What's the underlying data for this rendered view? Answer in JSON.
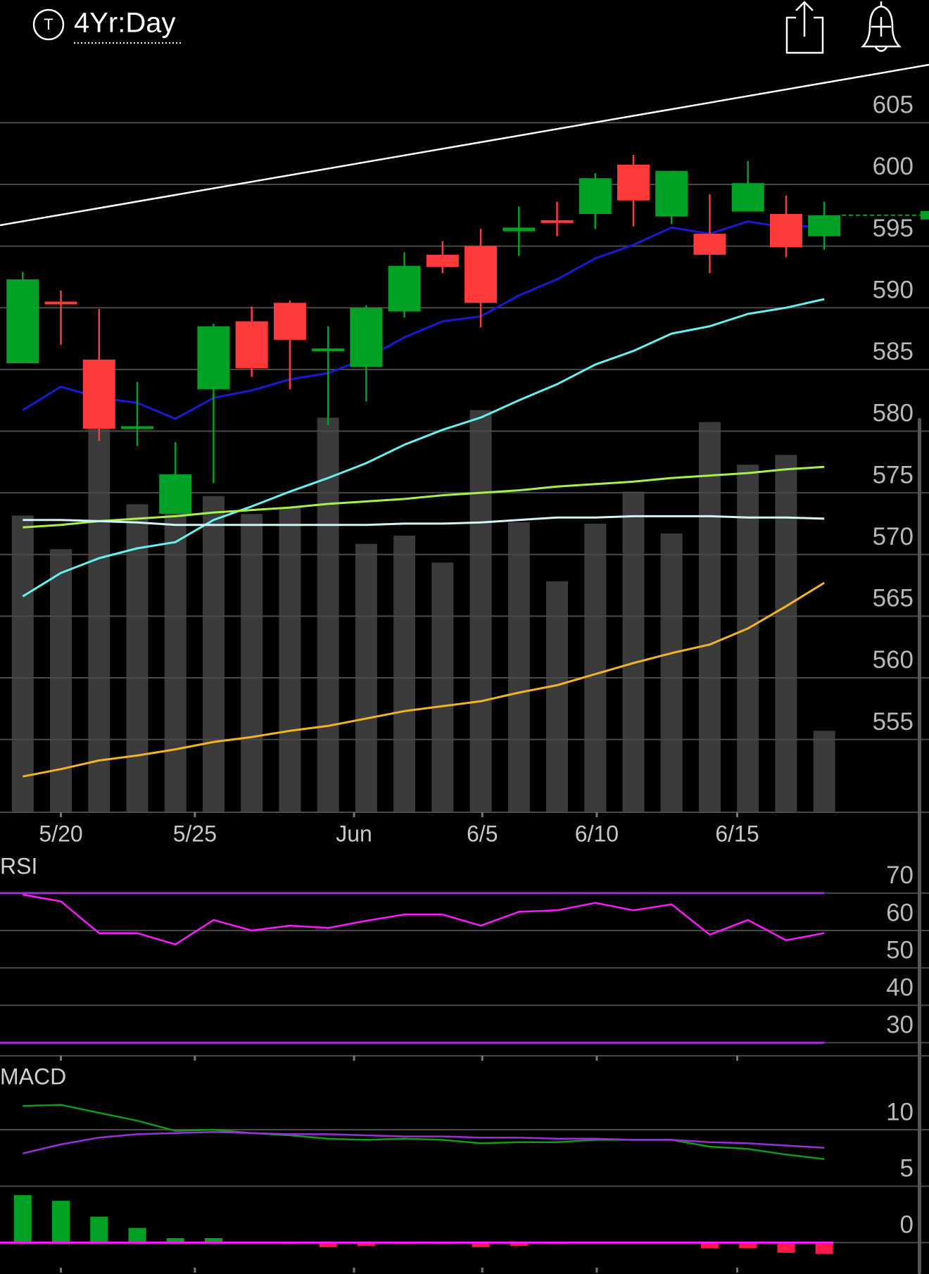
{
  "header": {
    "badge": "T",
    "title": "4Yr:Day"
  },
  "chart_data": [
    {
      "type": "candlestick",
      "categories": [
        null,
        null,
        null,
        null,
        null,
        null,
        null,
        null,
        null,
        null,
        null,
        null,
        null,
        null,
        null,
        null,
        null,
        null,
        null,
        null,
        null,
        null
      ],
      "open": [
        585.5,
        590.5,
        585.8,
        580.2,
        573.3,
        583.4,
        588.9,
        590.4,
        586.5,
        585.2,
        589.7,
        594.3,
        595.0,
        596.2,
        597.1,
        597.6,
        601.6,
        597.4,
        596.0,
        597.8,
        597.6,
        595.8
      ],
      "high": [
        592.9,
        591.4,
        589.9,
        584.0,
        579.1,
        588.7,
        590.1,
        590.6,
        588.5,
        590.2,
        594.5,
        595.4,
        596.4,
        598.2,
        598.6,
        600.9,
        602.4,
        601.1,
        599.2,
        601.9,
        599.1,
        598.6
      ],
      "low": [
        585.5,
        587.0,
        579.2,
        578.8,
        573.3,
        575.8,
        584.4,
        583.4,
        580.5,
        582.4,
        589.2,
        592.8,
        588.4,
        594.2,
        595.8,
        596.4,
        596.6,
        596.8,
        592.8,
        597.8,
        594.1,
        594.7
      ],
      "close": [
        592.3,
        590.3,
        580.2,
        580.4,
        576.5,
        588.5,
        585.1,
        587.4,
        586.7,
        590.0,
        593.4,
        593.3,
        590.4,
        596.5,
        596.9,
        600.5,
        598.7,
        601.1,
        594.3,
        600.1,
        594.9,
        597.5
      ],
      "up_color": "#00a124",
      "down_color": "#ff3a3a",
      "volume": {
        "values": [
          39.7,
          35.2,
          55.7,
          41.2,
          43.7,
          42.3,
          39.9,
          40.8,
          52.8,
          35.9,
          37.0,
          33.4,
          53.8,
          38.8,
          30.9,
          38.6,
          42.9,
          37.3,
          52.2,
          46.5,
          47.8,
          10.9
        ],
        "ylim": [
          0,
          100
        ],
        "color": "#3b3b3b"
      },
      "series": [
        {
          "color": "#1a1ad0",
          "values": [
            581.7,
            583.6,
            582.7,
            582.3,
            581.0,
            582.7,
            583.3,
            584.2,
            584.7,
            585.9,
            587.6,
            588.9,
            589.3,
            591.0,
            592.3,
            594.0,
            595.1,
            596.5,
            596.0,
            597.0,
            596.5,
            596.7
          ]
        },
        {
          "color": "#66f0f0",
          "values": [
            566.6,
            568.5,
            569.7,
            570.5,
            571.0,
            572.8,
            573.9,
            575.1,
            576.2,
            577.4,
            578.9,
            580.1,
            581.1,
            582.5,
            583.8,
            585.4,
            586.5,
            587.9,
            588.5,
            589.5,
            590.0,
            590.7
          ]
        },
        {
          "color": "#a8f04c",
          "values": [
            572.2,
            572.4,
            572.7,
            572.9,
            573.1,
            573.4,
            573.6,
            573.8,
            574.1,
            574.3,
            574.5,
            574.8,
            575.0,
            575.2,
            575.5,
            575.7,
            575.9,
            576.2,
            576.4,
            576.6,
            576.9,
            577.1
          ]
        },
        {
          "color": "#d2f4f4",
          "values": [
            572.8,
            572.8,
            572.7,
            572.6,
            572.4,
            572.4,
            572.4,
            572.4,
            572.4,
            572.4,
            572.5,
            572.5,
            572.6,
            572.8,
            573.0,
            573.0,
            573.1,
            573.1,
            573.1,
            573.0,
            573.0,
            572.9
          ]
        },
        {
          "color": "#f2b324",
          "values": [
            552.0,
            552.6,
            553.3,
            553.7,
            554.2,
            554.8,
            555.2,
            555.7,
            556.1,
            556.7,
            557.3,
            557.7,
            558.1,
            558.8,
            559.4,
            560.3,
            561.2,
            562.0,
            562.7,
            564.0,
            565.8,
            567.7
          ]
        }
      ],
      "ylim": [
        549.1,
        609.7
      ],
      "yticks": [
        555,
        560,
        565,
        570,
        575,
        580,
        585,
        590,
        595,
        600,
        605
      ],
      "grid": true,
      "xticks": [
        {
          "value": 1,
          "label": "5/20"
        },
        {
          "value": 4.51,
          "label": "5/25"
        },
        {
          "value": 8.68,
          "label": "Jun"
        },
        {
          "value": 12.04,
          "label": "6/5"
        },
        {
          "value": 15.04,
          "label": "6/10"
        },
        {
          "value": 18.72,
          "label": "6/15"
        }
      ]
    },
    {
      "type": "line",
      "title": "RSI",
      "categories": [
        null,
        null,
        null,
        null,
        null,
        null,
        null,
        null,
        null,
        null,
        null,
        null,
        null,
        null,
        null,
        null,
        null,
        null,
        null,
        null,
        null,
        null
      ],
      "values": [
        69.6,
        67.8,
        59.3,
        59.3,
        56.3,
        62.8,
        60.0,
        61.3,
        60.7,
        62.6,
        64.3,
        64.3,
        61.3,
        65.0,
        65.4,
        67.4,
        65.4,
        67.0,
        58.9,
        62.8,
        57.4,
        59.3
      ],
      "color": "#ff1aff",
      "reference_lines": [
        70,
        30
      ],
      "reference_color": "#9b30d9",
      "ylim": [
        26.5,
        80.8
      ],
      "yticks": [
        30,
        40,
        50,
        60,
        70
      ],
      "grid": true
    },
    {
      "type": "macd",
      "title": "MACD",
      "categories": [
        null,
        null,
        null,
        null,
        null,
        null,
        null,
        null,
        null,
        null,
        null,
        null,
        null,
        null,
        null,
        null,
        null,
        null,
        null,
        null,
        null,
        null
      ],
      "series": [
        {
          "color": "#129a1a",
          "values": [
            12.1,
            12.2,
            11.5,
            10.8,
            9.9,
            10.0,
            9.7,
            9.5,
            9.2,
            9.1,
            9.2,
            9.1,
            8.8,
            8.9,
            8.9,
            9.1,
            9.1,
            9.1,
            8.5,
            8.3,
            7.8,
            7.4
          ]
        },
        {
          "color": "#9b30d9",
          "values": [
            7.9,
            8.7,
            9.3,
            9.6,
            9.7,
            9.8,
            9.7,
            9.6,
            9.6,
            9.5,
            9.4,
            9.4,
            9.3,
            9.3,
            9.2,
            9.2,
            9.1,
            9.1,
            8.9,
            8.8,
            8.6,
            8.4
          ]
        }
      ],
      "histogram": {
        "values": [
          4.2,
          3.7,
          2.3,
          1.3,
          0.4,
          0.4,
          0,
          -0.1,
          -0.4,
          -0.3,
          -0.1,
          -0.1,
          -0.4,
          -0.3,
          -0.1,
          0,
          0,
          0,
          -0.5,
          -0.5,
          -0.9,
          -1.0
        ],
        "up_color": "#00a124",
        "down_color": "#ff1a4a"
      },
      "zero_color": "#ff1aff",
      "ylim": [
        -2.78,
        15.83
      ],
      "yticks": [
        0,
        5,
        10
      ],
      "grid": true
    }
  ]
}
